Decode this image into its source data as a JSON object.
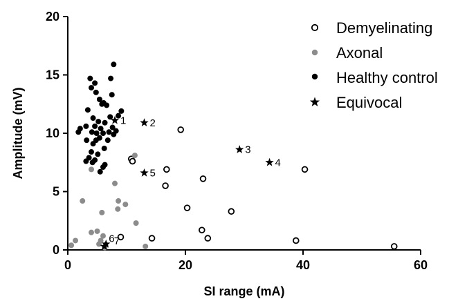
{
  "chart_data": {
    "type": "scatter",
    "xlabel": "SI range (mA)",
    "ylabel": "Amplitude (mV)",
    "xlim": [
      0,
      60
    ],
    "ylim": [
      0,
      20
    ],
    "xticks": [
      "0",
      "20",
      "40",
      "60"
    ],
    "yticks": [
      "0",
      "5",
      "10",
      "15",
      "20"
    ],
    "grid": false,
    "legend_position": "top-right",
    "colors": {
      "demyelinating": "#000000",
      "axonal": "#8c8c8c",
      "healthy": "#000000",
      "equivocal": "#000000"
    },
    "series": [
      {
        "name": "Demyelinating",
        "marker": "open-circle",
        "points": [
          [
            19.2,
            10.3
          ],
          [
            10.8,
            7.8
          ],
          [
            11.0,
            7.6
          ],
          [
            16.8,
            6.9
          ],
          [
            16.6,
            5.5
          ],
          [
            23.0,
            6.1
          ],
          [
            40.3,
            6.9
          ],
          [
            20.3,
            3.6
          ],
          [
            27.8,
            3.3
          ],
          [
            22.8,
            1.7
          ],
          [
            23.8,
            1.0
          ],
          [
            14.3,
            1.0
          ],
          [
            9.0,
            1.1
          ],
          [
            38.8,
            0.8
          ],
          [
            55.5,
            0.3
          ]
        ]
      },
      {
        "name": "Axonal",
        "marker": "filled-circle",
        "points": [
          [
            11.4,
            8.1
          ],
          [
            4.0,
            6.9
          ],
          [
            8.0,
            5.7
          ],
          [
            2.5,
            4.2
          ],
          [
            8.6,
            4.2
          ],
          [
            9.8,
            3.9
          ],
          [
            8.5,
            3.5
          ],
          [
            5.8,
            3.2
          ],
          [
            11.6,
            2.3
          ],
          [
            4.0,
            1.5
          ],
          [
            5.0,
            1.6
          ],
          [
            6.0,
            1.2
          ],
          [
            1.3,
            0.8
          ],
          [
            0.6,
            0.4
          ],
          [
            5.3,
            0.5
          ],
          [
            13.2,
            0.3
          ],
          [
            6.3,
            0.2
          ],
          [
            5.6,
            0.8
          ]
        ]
      },
      {
        "name": "Healthy control",
        "marker": "filled-circle",
        "points": [
          [
            7.8,
            15.9
          ],
          [
            3.8,
            14.7
          ],
          [
            7.3,
            14.7
          ],
          [
            4.6,
            14.3
          ],
          [
            4.0,
            13.9
          ],
          [
            4.8,
            13.5
          ],
          [
            7.5,
            13.3
          ],
          [
            5.4,
            12.9
          ],
          [
            6.1,
            12.6
          ],
          [
            5.8,
            12.5
          ],
          [
            6.6,
            12.4
          ],
          [
            3.4,
            12.0
          ],
          [
            9.1,
            11.9
          ],
          [
            8.6,
            11.5
          ],
          [
            4.3,
            11.3
          ],
          [
            7.2,
            11.4
          ],
          [
            5.2,
            11.0
          ],
          [
            6.3,
            10.9
          ],
          [
            3.1,
            10.6
          ],
          [
            2.1,
            10.4
          ],
          [
            4.6,
            10.6
          ],
          [
            5.6,
            10.4
          ],
          [
            7.6,
            10.5
          ],
          [
            8.2,
            10.2
          ],
          [
            1.8,
            10.1
          ],
          [
            4.1,
            10.1
          ],
          [
            4.9,
            10.0
          ],
          [
            6.0,
            10.0
          ],
          [
            7.0,
            10.1
          ],
          [
            7.8,
            9.9
          ],
          [
            5.4,
            9.6
          ],
          [
            3.2,
            9.4
          ],
          [
            4.8,
            9.4
          ],
          [
            6.8,
            9.4
          ],
          [
            4.3,
            9.1
          ],
          [
            6.2,
            8.7
          ],
          [
            4.0,
            8.4
          ],
          [
            5.1,
            8.2
          ],
          [
            3.6,
            7.9
          ],
          [
            4.6,
            7.7
          ],
          [
            3.1,
            7.6
          ],
          [
            6.3,
            7.3
          ],
          [
            6.0,
            7.1
          ],
          [
            5.5,
            6.7
          ],
          [
            4.2,
            7.5
          ]
        ]
      },
      {
        "name": "Equivocal",
        "marker": "star",
        "points": [
          [
            8.0,
            11.1
          ],
          [
            13.0,
            10.9
          ],
          [
            29.2,
            8.6
          ],
          [
            34.3,
            7.5
          ],
          [
            13.0,
            6.6
          ],
          [
            6.5,
            0.5
          ],
          [
            6.2,
            0.3
          ]
        ],
        "labels": [
          "1",
          "2",
          "3",
          "4",
          "5",
          "6",
          "7"
        ]
      }
    ]
  }
}
